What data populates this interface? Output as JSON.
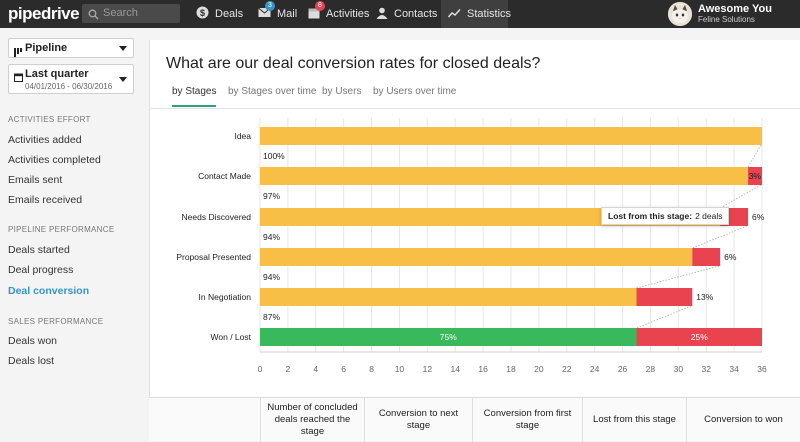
{
  "app": {
    "logo": "pipedrive"
  },
  "search": {
    "placeholder": "Search"
  },
  "nav": [
    {
      "label": "Deals",
      "icon": "dollar-icon",
      "badge": ""
    },
    {
      "label": "Mail",
      "icon": "mail-icon",
      "badge": "3"
    },
    {
      "label": "Activities",
      "icon": "calendar-icon",
      "badge": "8"
    },
    {
      "label": "Contacts",
      "icon": "person-icon",
      "badge": ""
    },
    {
      "label": "Statistics",
      "icon": "trend-icon",
      "badge": ""
    }
  ],
  "user": {
    "name": "Awesome You",
    "org": "Feline Solutions"
  },
  "sidebar": {
    "pipeline_dropdown": "Pipeline",
    "period_dropdown": "Last quarter",
    "period_range": "04/01/2016 - 06/30/2016",
    "sections": [
      {
        "title": "ACTIVITIES EFFORT",
        "items": [
          "Activities added",
          "Activities completed",
          "Emails sent",
          "Emails received"
        ]
      },
      {
        "title": "PIPELINE PERFORMANCE",
        "items": [
          "Deals started",
          "Deal progress",
          "Deal conversion"
        ]
      },
      {
        "title": "SALES PERFORMANCE",
        "items": [
          "Deals won",
          "Deals lost"
        ]
      }
    ],
    "active_item": "Deal conversion"
  },
  "main": {
    "title": "What are our deal conversion rates for closed deals?",
    "tabs": [
      "by Stages",
      "by Stages over time",
      "by Users",
      "by Users over time"
    ],
    "active_tab": "by Stages"
  },
  "tooltip": {
    "label": "Lost from this stage:",
    "value": "2 deals"
  },
  "table_headers": [
    "Number of concluded deals reached the stage",
    "Conversion to next stage",
    "Conversion from first stage",
    "Lost from this stage",
    "Conversion to won"
  ],
  "colors": {
    "reached": "#f7bf46",
    "lost": "#e8434f",
    "won": "#3ab85c",
    "accent": "#3594c8",
    "tab_underline": "#2f9e85"
  },
  "chart_data": {
    "type": "bar",
    "orientation": "horizontal-stacked",
    "categories": [
      "Idea",
      "Contact Made",
      "Needs Discovered",
      "Proposal Presented",
      "In Negotiation",
      "Won / Lost"
    ],
    "series": [
      {
        "values": [
          36,
          35,
          33,
          31,
          27,
          27
        ]
      },
      {
        "values": [
          0,
          1,
          2,
          2,
          4,
          9
        ]
      }
    ],
    "conversion_labels": [
      "100%",
      "97%",
      "94%",
      "94%",
      "87%",
      ""
    ],
    "lost_labels": [
      "",
      "3%",
      "6%",
      "6%",
      "13%",
      "25%"
    ],
    "won_label": "75%",
    "xlim": [
      0,
      36
    ],
    "xticks": [
      0,
      2,
      4,
      6,
      8,
      10,
      12,
      14,
      16,
      18,
      20,
      22,
      24,
      26,
      28,
      30,
      32,
      34,
      36
    ],
    "grid": true
  }
}
